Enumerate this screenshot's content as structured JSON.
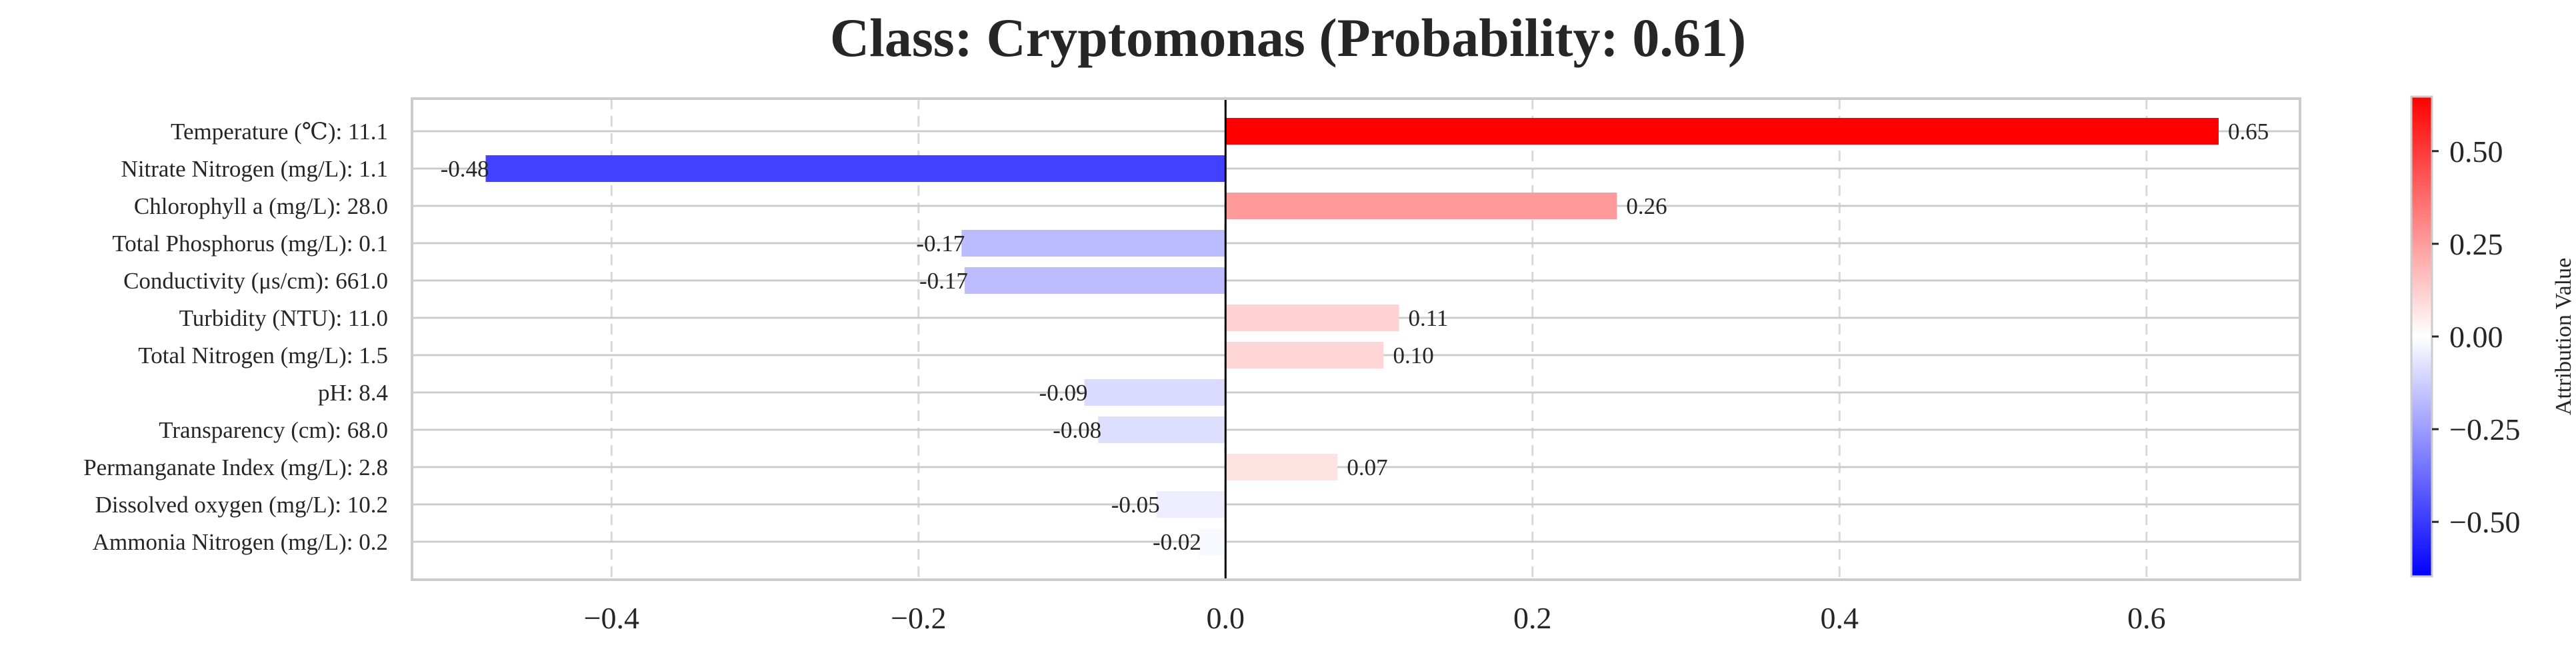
{
  "chart_data": {
    "type": "bar",
    "orientation": "horizontal",
    "title": "Class: Cryptomonas (Probability: 0.61)",
    "xlabel": "",
    "ylabel": "",
    "xlim": [
      -0.53,
      0.7
    ],
    "x_ticks": [
      -0.4,
      -0.2,
      0.0,
      0.2,
      0.4,
      0.6
    ],
    "x_tick_labels": [
      "−0.4",
      "−0.2",
      "0.0",
      "0.2",
      "0.4",
      "0.6"
    ],
    "grid": "vertical dashed",
    "categories": [
      "Temperature (℃): 11.1",
      "Nitrate Nitrogen (mg/L): 1.1",
      "Chlorophyll a (mg/L): 28.0",
      "Total Phosphorus (mg/L): 0.1",
      "Conductivity (μs/cm): 661.0",
      "Turbidity (NTU): 11.0",
      "Total Nitrogen (mg/L): 1.5",
      "pH: 8.4",
      "Transparency (cm): 68.0",
      "Permanganate Index (mg/L): 2.8",
      "Dissolved oxygen (mg/L): 10.2",
      "Ammonia Nitrogen (mg/L): 0.2"
    ],
    "values": [
      0.647,
      -0.482,
      0.255,
      -0.172,
      -0.17,
      0.113,
      0.103,
      -0.092,
      -0.083,
      0.073,
      -0.045,
      -0.018
    ],
    "value_labels": [
      "0.65",
      "-0.48",
      "0.26",
      "-0.17",
      "-0.17",
      "0.11",
      "0.10",
      "-0.09",
      "-0.08",
      "0.07",
      "-0.05",
      "-0.02"
    ],
    "colorbar": {
      "label": "Attribution Value",
      "range": [
        -0.647,
        0.647
      ],
      "ticks": [
        -0.5,
        -0.25,
        0.0,
        0.25,
        0.5
      ],
      "tick_labels": [
        "−0.50",
        "−0.25",
        "0.00",
        "0.25",
        "0.50"
      ],
      "colormap": "bwr",
      "low_color": "#0000ff",
      "mid_color": "#ffffff",
      "high_color": "#ff0000"
    }
  }
}
